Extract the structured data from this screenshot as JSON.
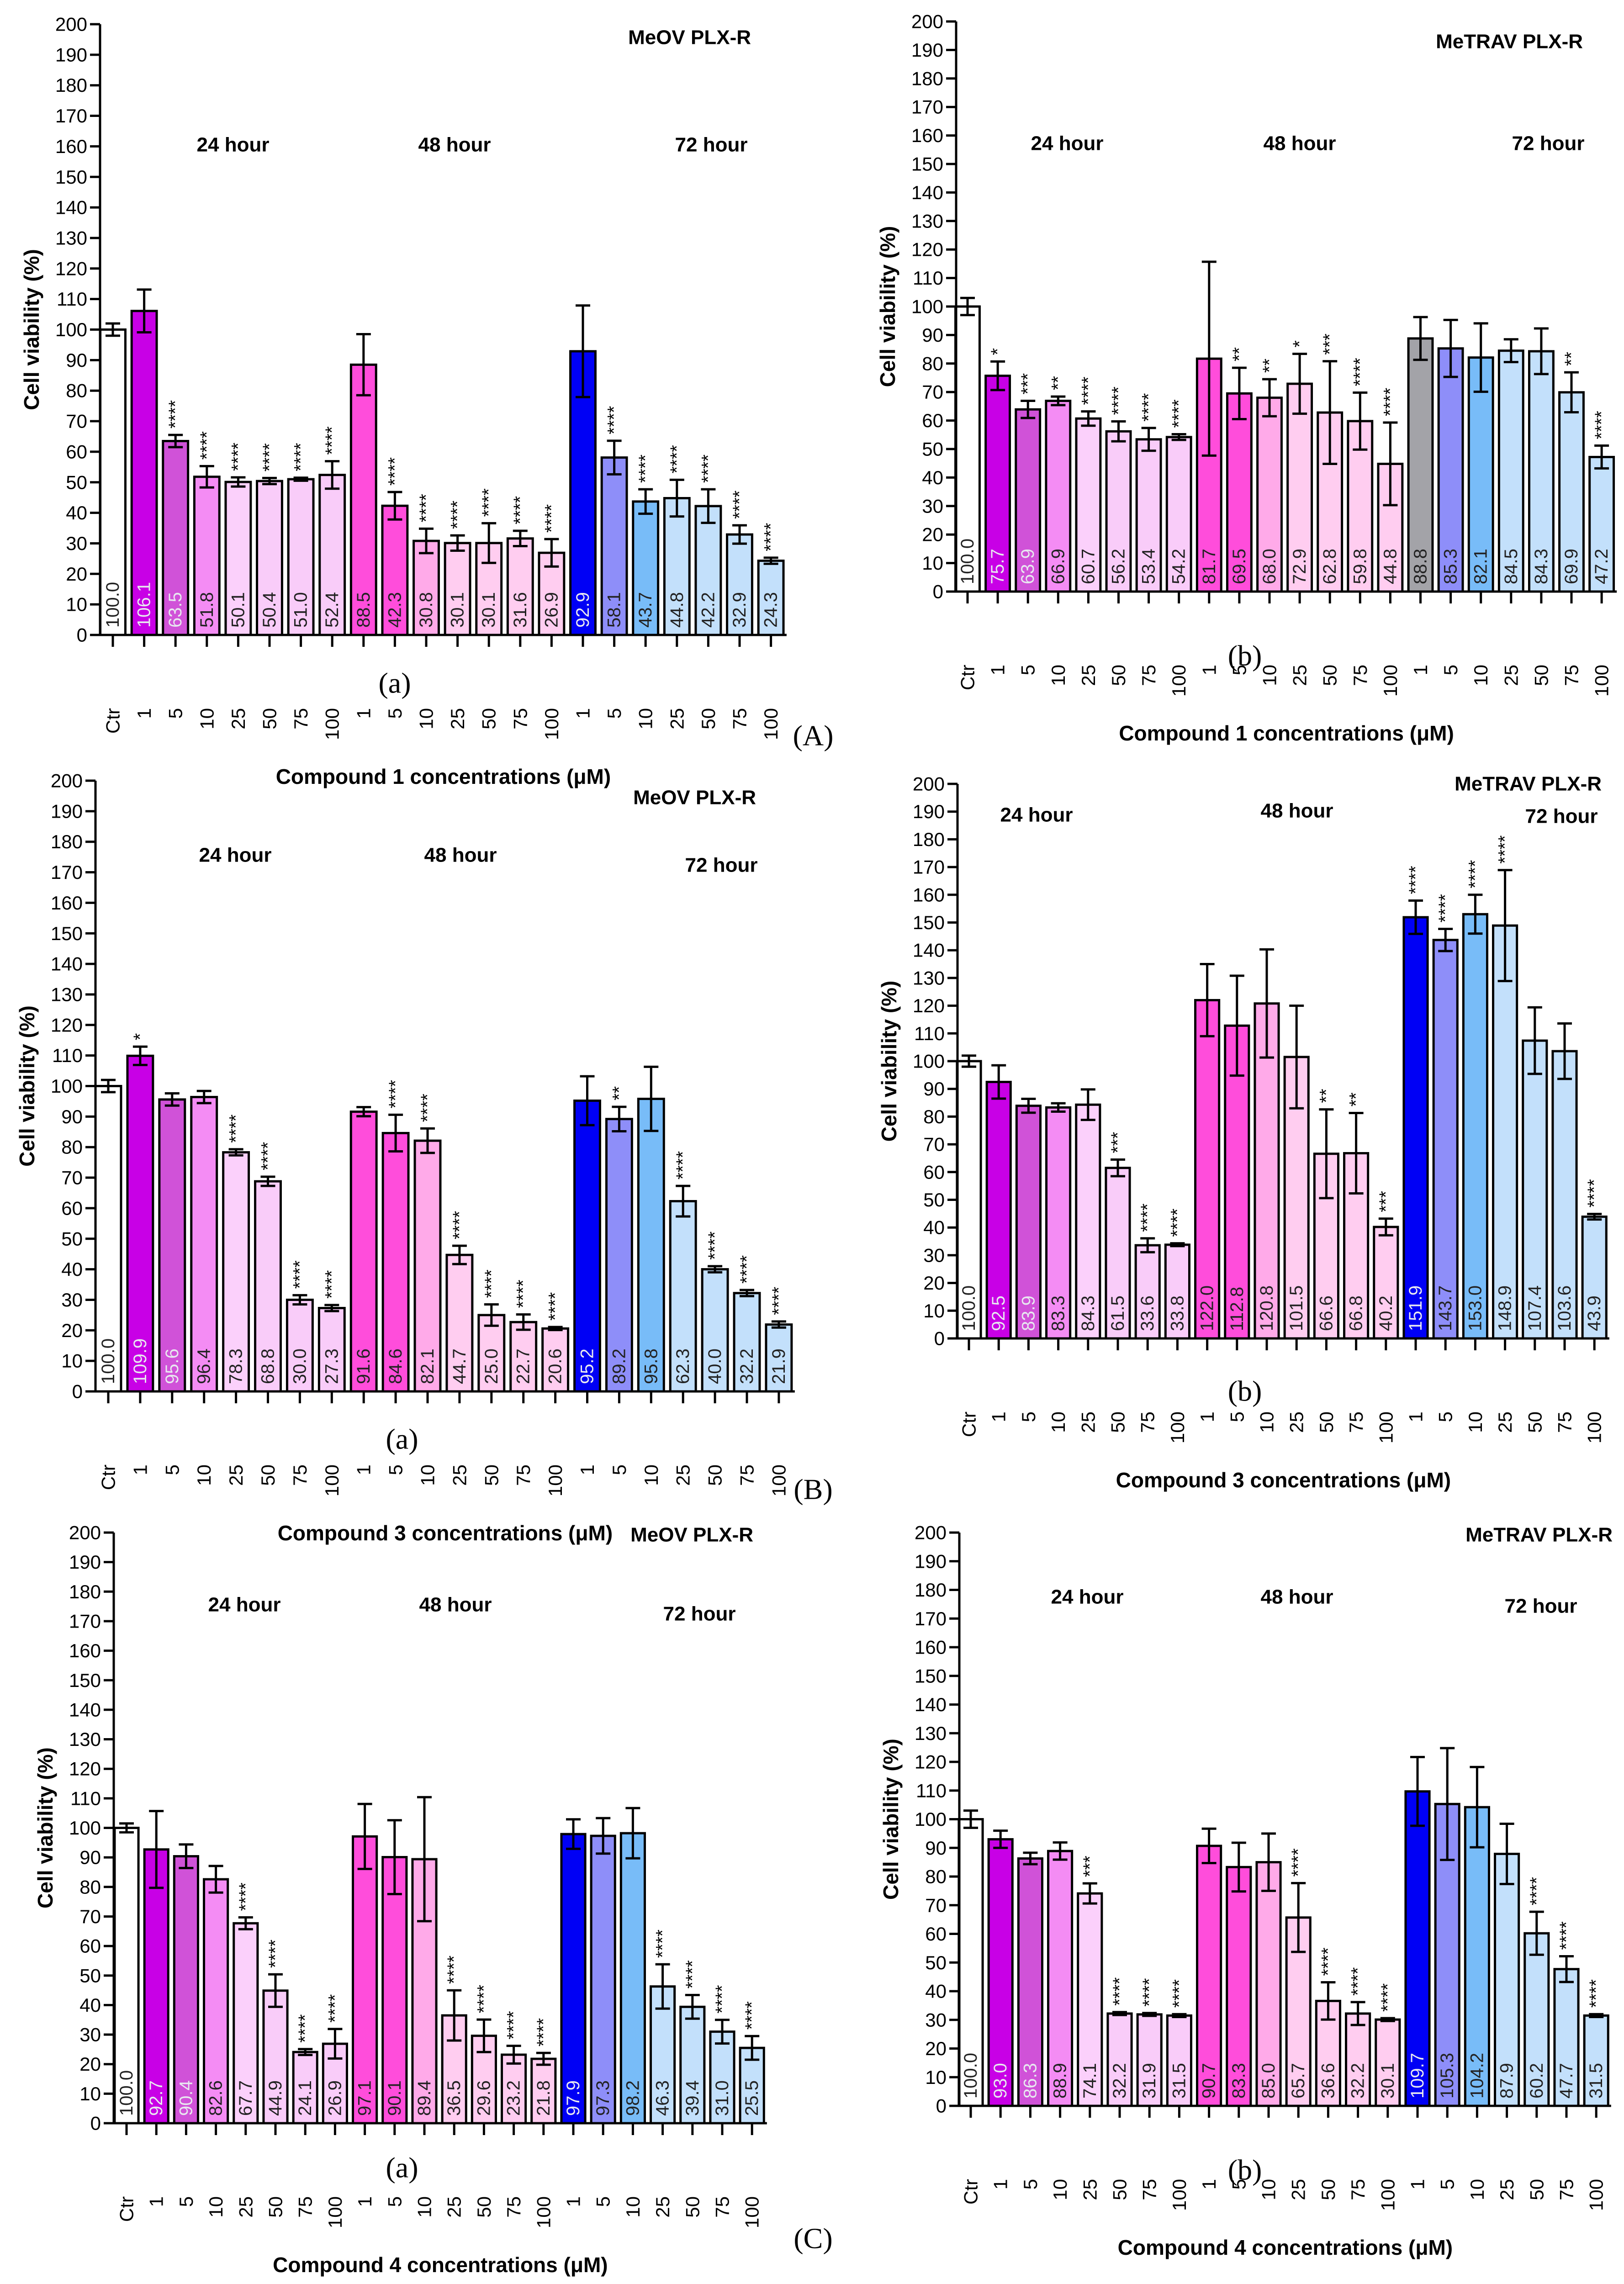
{
  "panels": [
    {
      "label": "(A)",
      "sublabels": [
        "(a)",
        "(b)"
      ]
    },
    {
      "label": "(B)",
      "sublabels": [
        "(a)",
        "(b)"
      ]
    },
    {
      "label": "(C)",
      "sublabels": [
        "(a)",
        "(b)"
      ]
    }
  ],
  "chart_data": [
    {
      "type": "bar",
      "panel": "A",
      "sublabel": "(a)",
      "title": "MeOV PLX-R",
      "xlabel": "Compound 1 concentrations (μM)",
      "ylabel": "Cell viability (%)",
      "ylim": [
        0,
        200
      ],
      "yticks": [
        0,
        10,
        20,
        30,
        40,
        50,
        60,
        70,
        80,
        90,
        100,
        110,
        120,
        130,
        140,
        150,
        160,
        170,
        180,
        190,
        200
      ],
      "groups": [
        "24 hour",
        "48 hour",
        "72 hour"
      ],
      "categories": [
        "Ctr",
        "1",
        "5",
        "10",
        "25",
        "50",
        "75",
        "100",
        "1",
        "5",
        "10",
        "25",
        "50",
        "75",
        "100",
        "1",
        "5",
        "10",
        "25",
        "50",
        "75",
        "100"
      ],
      "values": [
        100.0,
        106.1,
        63.5,
        51.8,
        50.1,
        50.4,
        51.0,
        52.4,
        88.5,
        42.3,
        30.8,
        30.1,
        30.1,
        31.6,
        26.9,
        92.9,
        58.1,
        43.7,
        44.8,
        42.2,
        32.9,
        24.3
      ],
      "errors": [
        2,
        7,
        2,
        3.5,
        1.5,
        1,
        0.5,
        4.5,
        10,
        4.5,
        4,
        2.5,
        6.5,
        2.5,
        4.5,
        15,
        5.5,
        4,
        6,
        5.5,
        3,
        1
      ],
      "significance": [
        "",
        "",
        "****",
        "****",
        "****",
        "****",
        "****",
        "****",
        "",
        "****",
        "****",
        "****",
        "****",
        "****",
        "****",
        "",
        "****",
        "****",
        "****",
        "****",
        "****",
        "****"
      ],
      "colors": [
        "#ffffff",
        "#c800e6",
        "#d052d8",
        "#f48cf4",
        "#fbd0fb",
        "#f9ccf9",
        "#f9ccf9",
        "#f9ccf9",
        "#ff4ddb",
        "#ff4ddb",
        "#ffaae9",
        "#ffcdf0",
        "#ffcdf0",
        "#ffcdf0",
        "#ffcdf0",
        "#0000f5",
        "#8e8ef9",
        "#78bcf8",
        "#c3e0fb",
        "#c3e0fb",
        "#c3e0fb",
        "#c3e0fb"
      ]
    },
    {
      "type": "bar",
      "panel": "A",
      "sublabel": "(b)",
      "title": "MeTRAV PLX-R",
      "xlabel": "Compound 1 concentrations (μM)",
      "ylabel": "Cell viability (%)",
      "ylim": [
        0,
        200
      ],
      "yticks": [
        0,
        10,
        20,
        30,
        40,
        50,
        60,
        70,
        80,
        90,
        100,
        110,
        120,
        130,
        140,
        150,
        160,
        170,
        180,
        190,
        200
      ],
      "groups": [
        "24 hour",
        "48 hour",
        "72 hour"
      ],
      "categories": [
        "Ctr",
        "1",
        "5",
        "10",
        "25",
        "50",
        "75",
        "100",
        "1",
        "5",
        "10",
        "25",
        "50",
        "75",
        "100",
        "1",
        "5",
        "10",
        "25",
        "50",
        "75",
        "100"
      ],
      "values": [
        100.0,
        75.7,
        63.9,
        66.9,
        60.7,
        56.2,
        53.4,
        54.2,
        81.7,
        69.5,
        68.0,
        72.9,
        62.8,
        59.8,
        44.8,
        88.8,
        85.3,
        82.1,
        84.5,
        84.3,
        69.9,
        47.2
      ],
      "errors": [
        3,
        5,
        3,
        1.5,
        2.5,
        3.5,
        4,
        1,
        34,
        9,
        6.5,
        10.5,
        18,
        10,
        14.5,
        7.5,
        10,
        12,
        4,
        8,
        7,
        4
      ],
      "significance": [
        "",
        "*",
        "***",
        "**",
        "****",
        "****",
        "****",
        "****",
        "",
        "**",
        "**",
        "*",
        "***",
        "****",
        "****",
        "",
        "",
        "",
        "",
        "",
        "**",
        "****"
      ],
      "colors": [
        "#ffffff",
        "#c800e6",
        "#d052d8",
        "#f48cf4",
        "#fbd0fb",
        "#f9ccf9",
        "#f9ccf9",
        "#f9ccf9",
        "#ff4ddb",
        "#ff4ddb",
        "#ffaae9",
        "#ffcdf0",
        "#ffcdf0",
        "#ffcdf0",
        "#ffcdf0",
        "#a3a3a8",
        "#8e8ef9",
        "#78bcf8",
        "#c3e0fb",
        "#c3e0fb",
        "#c3e0fb",
        "#c3e0fb"
      ]
    },
    {
      "type": "bar",
      "panel": "B",
      "sublabel": "(a)",
      "title": "MeOV PLX-R",
      "xlabel": "Compound 3 concentrations (μM)",
      "ylabel": "Cell viability (%)",
      "ylim": [
        0,
        200
      ],
      "yticks": [
        0,
        10,
        20,
        30,
        40,
        50,
        60,
        70,
        80,
        90,
        100,
        110,
        120,
        130,
        140,
        150,
        160,
        170,
        180,
        190,
        200
      ],
      "groups": [
        "24 hour",
        "48 hour",
        "72 hour"
      ],
      "categories": [
        "Ctr",
        "1",
        "5",
        "10",
        "25",
        "50",
        "75",
        "100",
        "1",
        "5",
        "10",
        "25",
        "50",
        "75",
        "100",
        "1",
        "5",
        "10",
        "25",
        "50",
        "75",
        "100"
      ],
      "values": [
        100.0,
        109.9,
        95.6,
        96.4,
        78.3,
        68.8,
        30.0,
        27.3,
        91.6,
        84.6,
        82.1,
        44.7,
        25.0,
        22.7,
        20.6,
        95.2,
        89.2,
        95.8,
        62.3,
        40.0,
        32.2,
        21.9
      ],
      "errors": [
        2,
        3,
        2,
        2,
        1,
        1.5,
        1.5,
        1,
        1.5,
        6,
        4,
        3,
        3.5,
        2.5,
        0.5,
        8,
        4,
        10.5,
        5,
        1,
        1,
        1
      ],
      "significance": [
        "",
        "*",
        "",
        "",
        "****",
        "****",
        "****",
        "****",
        "",
        "****",
        "****",
        "****",
        "****",
        "****",
        "****",
        "",
        "**",
        "",
        "****",
        "****",
        "****",
        "****"
      ],
      "colors": [
        "#ffffff",
        "#c800e6",
        "#d052d8",
        "#f48cf4",
        "#fbd0fb",
        "#f9ccf9",
        "#f9ccf9",
        "#f9ccf9",
        "#ff4ddb",
        "#ff4ddb",
        "#ffaae9",
        "#ffcdf0",
        "#ffcdf0",
        "#ffcdf0",
        "#ffcdf0",
        "#0000f5",
        "#8e8ef9",
        "#78bcf8",
        "#c3e0fb",
        "#c3e0fb",
        "#c3e0fb",
        "#c3e0fb"
      ]
    },
    {
      "type": "bar",
      "panel": "B",
      "sublabel": "(b)",
      "title": "MeTRAV PLX-R",
      "xlabel": "Compound 3 concentrations (μM)",
      "ylabel": "Cell viability (%)",
      "ylim": [
        0,
        200
      ],
      "yticks": [
        0,
        10,
        20,
        30,
        40,
        50,
        60,
        70,
        80,
        90,
        100,
        110,
        120,
        130,
        140,
        150,
        160,
        170,
        180,
        190,
        200
      ],
      "groups": [
        "24 hour",
        "48 hour",
        "72 hour"
      ],
      "categories": [
        "Ctr",
        "1",
        "5",
        "10",
        "25",
        "50",
        "75",
        "100",
        "1",
        "5",
        "10",
        "25",
        "50",
        "75",
        "100",
        "1",
        "5",
        "10",
        "25",
        "50",
        "75",
        "100"
      ],
      "values": [
        100.0,
        92.5,
        83.9,
        83.3,
        84.3,
        61.5,
        33.6,
        33.8,
        122.0,
        112.8,
        120.8,
        101.5,
        66.6,
        66.8,
        40.2,
        151.9,
        143.7,
        153.0,
        148.9,
        107.4,
        103.6,
        43.9
      ],
      "errors": [
        2,
        6,
        2.5,
        1.5,
        5.5,
        3,
        2.5,
        0.5,
        13,
        18,
        19.5,
        18.5,
        16,
        14.5,
        3,
        6,
        4,
        7,
        20,
        12,
        10,
        1
      ],
      "significance": [
        "",
        "",
        "",
        "",
        "",
        "***",
        "****",
        "****",
        "",
        "",
        "",
        "",
        "**",
        "**",
        "***",
        "****",
        "****",
        "****",
        "****",
        "",
        "",
        "****"
      ],
      "colors": [
        "#ffffff",
        "#c800e6",
        "#d052d8",
        "#f48cf4",
        "#fbd0fb",
        "#f9ccf9",
        "#f9ccf9",
        "#f9ccf9",
        "#ff4ddb",
        "#ff4ddb",
        "#ffaae9",
        "#ffcdf0",
        "#ffcdf0",
        "#ffcdf0",
        "#ffcdf0",
        "#0000f5",
        "#8e8ef9",
        "#78bcf8",
        "#c3e0fb",
        "#c3e0fb",
        "#c3e0fb",
        "#c3e0fb"
      ]
    },
    {
      "type": "bar",
      "panel": "C",
      "sublabel": "(a)",
      "title": "MeOV PLX-R",
      "xlabel": "Compound 4 concentrations (μM)",
      "ylabel": "Cell viability (%)",
      "ylim": [
        0,
        200
      ],
      "yticks": [
        0,
        10,
        20,
        30,
        40,
        50,
        60,
        70,
        80,
        90,
        100,
        110,
        120,
        130,
        140,
        150,
        160,
        170,
        180,
        190,
        200
      ],
      "groups": [
        "24 hour",
        "48 hour",
        "72 hour"
      ],
      "categories": [
        "Ctr",
        "1",
        "5",
        "10",
        "25",
        "50",
        "75",
        "100",
        "1",
        "5",
        "10",
        "25",
        "50",
        "75",
        "100",
        "1",
        "5",
        "10",
        "25",
        "50",
        "75",
        "100"
      ],
      "values": [
        100.0,
        92.7,
        90.4,
        82.6,
        67.7,
        44.9,
        24.1,
        26.9,
        97.1,
        90.1,
        89.4,
        36.5,
        29.6,
        23.2,
        21.8,
        97.9,
        97.3,
        98.2,
        46.3,
        39.4,
        31.0,
        25.5
      ],
      "errors": [
        1.5,
        13,
        4,
        4.5,
        2,
        5.5,
        1,
        5,
        11,
        12.5,
        21,
        8.5,
        5.5,
        3,
        2,
        5,
        6,
        8.5,
        7.5,
        4,
        4,
        4
      ],
      "significance": [
        "",
        "",
        "",
        "",
        "****",
        "****",
        "****",
        "****",
        "",
        "",
        "",
        "****",
        "****",
        "****",
        "****",
        "",
        "",
        "",
        "****",
        "****",
        "****",
        "****"
      ],
      "colors": [
        "#ffffff",
        "#c800e6",
        "#d052d8",
        "#f48cf4",
        "#fbd0fb",
        "#f9ccf9",
        "#f9ccf9",
        "#f9ccf9",
        "#ff4ddb",
        "#ff4ddb",
        "#ffaae9",
        "#ffcdf0",
        "#ffcdf0",
        "#ffcdf0",
        "#ffcdf0",
        "#0000f5",
        "#8e8ef9",
        "#78bcf8",
        "#c3e0fb",
        "#c3e0fb",
        "#c3e0fb",
        "#c3e0fb"
      ]
    },
    {
      "type": "bar",
      "panel": "C",
      "sublabel": "(b)",
      "title": "MeTRAV PLX-R",
      "xlabel": "Compound 4 concentrations (μM)",
      "ylabel": "Cell viability (%)",
      "ylim": [
        0,
        200
      ],
      "yticks": [
        0,
        10,
        20,
        30,
        40,
        50,
        60,
        70,
        80,
        90,
        100,
        110,
        120,
        130,
        140,
        150,
        160,
        170,
        180,
        190,
        200
      ],
      "groups": [
        "24 hour",
        "48 hour",
        "72 hour"
      ],
      "categories": [
        "Ctr",
        "1",
        "5",
        "10",
        "25",
        "50",
        "75",
        "100",
        "1",
        "5",
        "10",
        "25",
        "50",
        "75",
        "100",
        "1",
        "5",
        "10",
        "25",
        "50",
        "75",
        "100"
      ],
      "values": [
        100.0,
        93.0,
        86.3,
        88.9,
        74.1,
        32.2,
        31.9,
        31.5,
        90.7,
        83.3,
        85.0,
        65.7,
        36.6,
        32.2,
        30.1,
        109.7,
        105.3,
        104.2,
        87.9,
        60.2,
        47.7,
        31.5
      ],
      "errors": [
        3,
        3,
        2,
        3,
        3.5,
        0.5,
        0.5,
        0.5,
        6,
        8.5,
        10,
        12,
        6.5,
        4,
        0.5,
        12,
        19.5,
        14,
        10.5,
        7.5,
        4.5,
        0.5
      ],
      "significance": [
        "",
        "",
        "",
        "",
        "***",
        "****",
        "****",
        "****",
        "",
        "",
        "",
        "****",
        "****",
        "****",
        "****",
        "",
        "",
        "",
        "",
        "****",
        "****",
        "****"
      ],
      "colors": [
        "#ffffff",
        "#c800e6",
        "#d052d8",
        "#f48cf4",
        "#fbd0fb",
        "#f9ccf9",
        "#f9ccf9",
        "#f9ccf9",
        "#ff4ddb",
        "#ff4ddb",
        "#ffaae9",
        "#ffcdf0",
        "#ffcdf0",
        "#ffcdf0",
        "#ffcdf0",
        "#0000f5",
        "#8e8ef9",
        "#78bcf8",
        "#c3e0fb",
        "#c3e0fb",
        "#c3e0fb",
        "#c3e0fb"
      ]
    }
  ]
}
